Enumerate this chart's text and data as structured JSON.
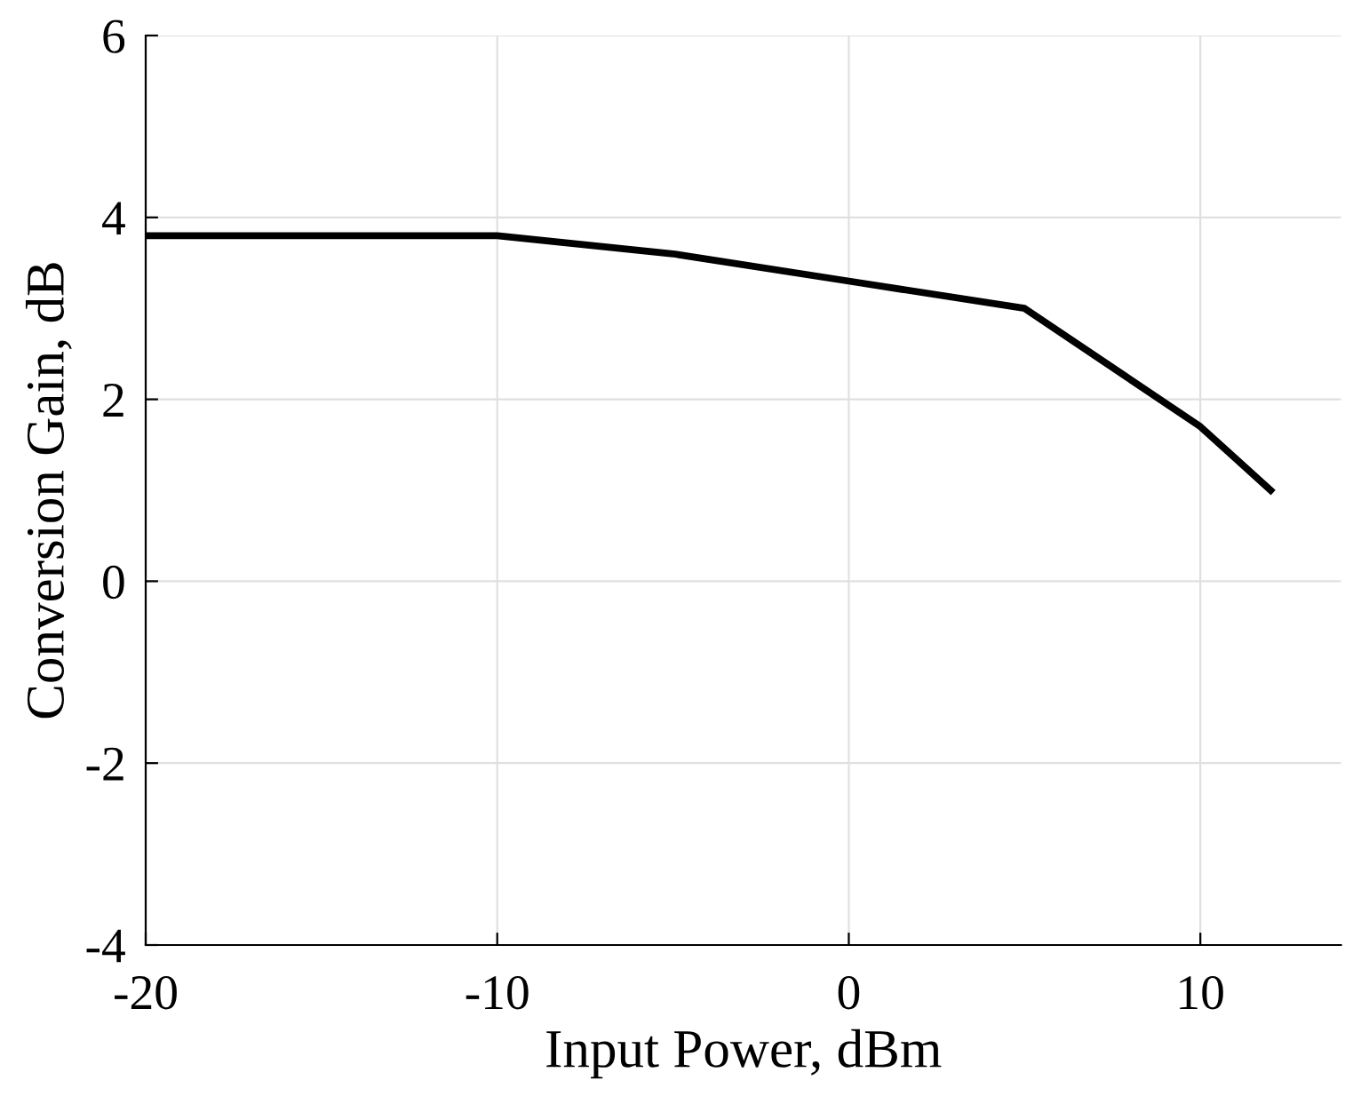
{
  "chart_data": {
    "type": "line",
    "xlabel": "Input Power, dBm",
    "ylabel": "Conversion Gain, dB",
    "x": [
      -20,
      -10,
      -5,
      0,
      5,
      10,
      12
    ],
    "series": [
      {
        "color": "#000000",
        "values": [
          3.8,
          3.8,
          3.6,
          3.3,
          3.0,
          1.7,
          1.0
        ]
      }
    ],
    "xlim": [
      -20,
      14
    ],
    "ylim": [
      -4,
      6
    ],
    "xticks": [
      -20,
      -10,
      0,
      10
    ],
    "yticks": [
      -4,
      -2,
      0,
      2,
      4,
      6
    ],
    "grid": true,
    "marker": "none",
    "line_style": "solid"
  }
}
